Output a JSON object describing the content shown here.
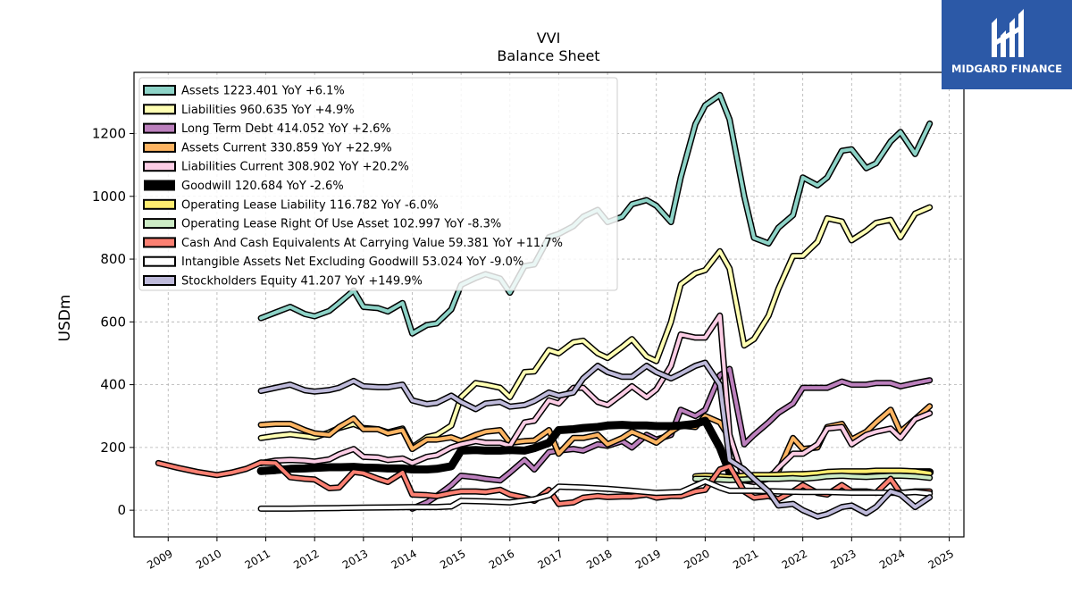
{
  "brand": {
    "name": "MIDGARD FINANCE",
    "logo_icon": "midgard-logo-icon",
    "color": "#2c59a7"
  },
  "chart_data": {
    "type": "line",
    "title": "VVI",
    "subtitle": "Balance  Sheet",
    "ylabel": "USDm",
    "xlabel": "",
    "xlim": [
      2008.3,
      2025.3
    ],
    "ylim": [
      -85,
      1395
    ],
    "x_ticks": [
      2009,
      2010,
      2011,
      2012,
      2013,
      2014,
      2015,
      2016,
      2017,
      2018,
      2019,
      2020,
      2021,
      2022,
      2023,
      2024,
      2025
    ],
    "y_ticks": [
      0,
      200,
      400,
      600,
      800,
      1000,
      1200
    ],
    "grid": true,
    "legend_position": "top-left",
    "series": [
      {
        "name": "Assets",
        "legend": "Assets  1223.401 YoY +6.1%",
        "color": "#8dd3c7",
        "width": 4,
        "x": [
          2010.9,
          2011.2,
          2011.5,
          2011.8,
          2012.0,
          2012.3,
          2012.5,
          2012.8,
          2013.0,
          2013.3,
          2013.5,
          2013.8,
          2014.0,
          2014.3,
          2014.5,
          2014.8,
          2015.0,
          2015.3,
          2015.5,
          2015.8,
          2016.0,
          2016.3,
          2016.5,
          2016.8,
          2017.0,
          2017.3,
          2017.5,
          2017.8,
          2018.0,
          2018.3,
          2018.5,
          2018.8,
          2019.0,
          2019.3,
          2019.5,
          2019.8,
          2020.0,
          2020.3,
          2020.5,
          2020.8,
          2021.0,
          2021.3,
          2021.5,
          2021.8,
          2022.0,
          2022.3,
          2022.5,
          2022.8,
          2023.0,
          2023.3,
          2023.5,
          2023.8,
          2024.0,
          2024.3,
          2024.6
        ],
        "y": [
          612,
          630,
          648,
          625,
          618,
          635,
          660,
          700,
          648,
          644,
          633,
          660,
          563,
          590,
          595,
          640,
          718,
          740,
          752,
          738,
          693,
          778,
          783,
          870,
          880,
          905,
          935,
          957,
          918,
          935,
          975,
          988,
          970,
          918,
          1060,
          1230,
          1290,
          1323,
          1245,
          1000,
          868,
          850,
          900,
          940,
          1060,
          1035,
          1060,
          1145,
          1150,
          1090,
          1105,
          1175,
          1205,
          1135,
          1232
        ]
      },
      {
        "name": "Liabilities",
        "legend": "Liabilities  960.635 YoY +4.9%",
        "color": "#ffffb3",
        "width": 4,
        "x": [
          2010.9,
          2011.2,
          2011.5,
          2011.8,
          2012.0,
          2012.3,
          2012.5,
          2012.8,
          2013.0,
          2013.3,
          2013.5,
          2013.8,
          2014.0,
          2014.3,
          2014.5,
          2014.8,
          2015.0,
          2015.3,
          2015.5,
          2015.8,
          2016.0,
          2016.3,
          2016.5,
          2016.8,
          2017.0,
          2017.3,
          2017.5,
          2017.8,
          2018.0,
          2018.3,
          2018.5,
          2018.8,
          2019.0,
          2019.3,
          2019.5,
          2019.8,
          2020.0,
          2020.3,
          2020.5,
          2020.8,
          2021.0,
          2021.3,
          2021.5,
          2021.8,
          2022.0,
          2022.3,
          2022.5,
          2022.8,
          2023.0,
          2023.3,
          2023.5,
          2023.8,
          2024.0,
          2024.3,
          2024.6
        ],
        "y": [
          230,
          237,
          242,
          236,
          232,
          248,
          262,
          275,
          262,
          258,
          248,
          260,
          200,
          233,
          240,
          270,
          360,
          405,
          400,
          390,
          360,
          440,
          442,
          510,
          500,
          535,
          540,
          500,
          485,
          520,
          545,
          490,
          475,
          600,
          720,
          755,
          765,
          825,
          770,
          525,
          545,
          620,
          705,
          810,
          810,
          855,
          930,
          920,
          860,
          890,
          915,
          925,
          870,
          945,
          965
        ]
      },
      {
        "name": "Long Term Debt",
        "legend": "Long Term Debt  414.052 YoY +2.6%",
        "color": "#bc80bd",
        "width": 4,
        "x": [
          2014.0,
          2014.3,
          2014.5,
          2014.8,
          2015.0,
          2015.3,
          2015.5,
          2015.8,
          2016.0,
          2016.3,
          2016.5,
          2016.8,
          2017.0,
          2017.3,
          2017.5,
          2017.8,
          2018.0,
          2018.3,
          2018.5,
          2018.8,
          2019.0,
          2019.3,
          2019.5,
          2019.8,
          2020.0,
          2020.3,
          2020.5,
          2020.8,
          2021.0,
          2021.3,
          2021.5,
          2021.8,
          2022.0,
          2022.3,
          2022.5,
          2022.8,
          2023.0,
          2023.3,
          2023.5,
          2023.8,
          2024.0,
          2024.3,
          2024.6
        ],
        "y": [
          5,
          25,
          45,
          80,
          110,
          105,
          100,
          95,
          120,
          160,
          130,
          185,
          190,
          195,
          190,
          210,
          205,
          220,
          200,
          240,
          225,
          240,
          320,
          300,
          320,
          430,
          450,
          210,
          240,
          280,
          310,
          340,
          390,
          390,
          390,
          410,
          400,
          400,
          405,
          405,
          395,
          405,
          414
        ]
      },
      {
        "name": "Assets Current",
        "legend": "Assets Current  330.859 YoY +22.9%",
        "color": "#fdb462",
        "width": 4,
        "x": [
          2010.9,
          2011.2,
          2011.5,
          2011.8,
          2012.0,
          2012.3,
          2012.5,
          2012.8,
          2013.0,
          2013.3,
          2013.5,
          2013.8,
          2014.0,
          2014.3,
          2014.5,
          2014.8,
          2015.0,
          2015.3,
          2015.5,
          2015.8,
          2016.0,
          2016.3,
          2016.5,
          2016.8,
          2017.0,
          2017.3,
          2017.5,
          2017.8,
          2018.0,
          2018.3,
          2018.5,
          2018.8,
          2019.0,
          2019.3,
          2019.5,
          2019.8,
          2020.0,
          2020.3,
          2020.5,
          2020.8,
          2021.0,
          2021.3,
          2021.5,
          2021.8,
          2022.0,
          2022.3,
          2022.5,
          2022.8,
          2023.0,
          2023.3,
          2023.5,
          2023.8,
          2024.0,
          2024.3,
          2024.6
        ],
        "y": [
          272,
          275,
          275,
          255,
          245,
          240,
          265,
          292,
          258,
          258,
          245,
          255,
          195,
          225,
          225,
          232,
          220,
          240,
          250,
          255,
          215,
          220,
          222,
          255,
          180,
          230,
          230,
          240,
          210,
          230,
          250,
          230,
          215,
          250,
          270,
          265,
          300,
          280,
          230,
          100,
          95,
          110,
          125,
          230,
          195,
          200,
          265,
          275,
          225,
          250,
          280,
          320,
          250,
          290,
          331
        ]
      },
      {
        "name": "Liabilities Current",
        "legend": "Liabilities Current  308.902 YoY +20.2%",
        "color": "#fccde5",
        "width": 4,
        "x": [
          2010.9,
          2011.2,
          2011.5,
          2011.8,
          2012.0,
          2012.3,
          2012.5,
          2012.8,
          2013.0,
          2013.3,
          2013.5,
          2013.8,
          2014.0,
          2014.3,
          2014.5,
          2014.8,
          2015.0,
          2015.3,
          2015.5,
          2015.8,
          2016.0,
          2016.3,
          2016.5,
          2016.8,
          2017.0,
          2017.3,
          2017.5,
          2017.8,
          2018.0,
          2018.3,
          2018.5,
          2018.8,
          2019.0,
          2019.3,
          2019.5,
          2019.8,
          2020.0,
          2020.3,
          2020.5,
          2020.8,
          2021.0,
          2021.3,
          2021.5,
          2021.8,
          2022.0,
          2022.3,
          2022.5,
          2022.8,
          2023.0,
          2023.3,
          2023.5,
          2023.8,
          2024.0,
          2024.3,
          2024.6
        ],
        "y": [
          150,
          158,
          160,
          158,
          155,
          162,
          178,
          195,
          170,
          168,
          160,
          165,
          150,
          170,
          175,
          200,
          210,
          220,
          215,
          215,
          205,
          280,
          285,
          350,
          340,
          390,
          390,
          345,
          335,
          370,
          395,
          360,
          385,
          460,
          560,
          550,
          550,
          620,
          240,
          95,
          90,
          100,
          135,
          180,
          180,
          210,
          260,
          265,
          210,
          240,
          250,
          260,
          230,
          290,
          309
        ]
      },
      {
        "name": "Goodwill",
        "legend": "Goodwill  120.684 YoY -2.6%",
        "color": "#000000",
        "width": 9,
        "x": [
          2010.9,
          2011.2,
          2011.5,
          2011.8,
          2012.0,
          2012.3,
          2012.5,
          2012.8,
          2013.0,
          2013.3,
          2013.5,
          2013.8,
          2014.0,
          2014.3,
          2014.5,
          2014.8,
          2015.0,
          2015.3,
          2015.5,
          2015.8,
          2016.0,
          2016.3,
          2016.5,
          2016.8,
          2017.0,
          2017.3,
          2017.5,
          2017.8,
          2018.0,
          2018.3,
          2018.5,
          2018.8,
          2019.0,
          2019.3,
          2019.5,
          2019.8,
          2020.0,
          2020.3,
          2020.5,
          2020.8,
          2021.0,
          2021.3,
          2021.5,
          2021.8,
          2022.0,
          2022.3,
          2022.5,
          2022.8,
          2023.0,
          2023.3,
          2023.5,
          2023.8,
          2024.0,
          2024.3,
          2024.6
        ],
        "y": [
          125,
          128,
          132,
          133,
          135,
          137,
          137,
          138,
          136,
          135,
          133,
          133,
          130,
          130,
          132,
          140,
          190,
          192,
          190,
          190,
          192,
          190,
          198,
          215,
          255,
          258,
          262,
          265,
          270,
          272,
          270,
          270,
          268,
          268,
          270,
          275,
          285,
          200,
          120,
          98,
          100,
          105,
          108,
          110,
          112,
          114,
          116,
          118,
          118,
          119,
          120,
          120,
          121,
          121,
          121
        ]
      },
      {
        "name": "Operating Lease Liability",
        "legend": "Operating Lease Liability  116.782 YoY -6.0%",
        "color": "#ffed6f",
        "width": 4,
        "x": [
          2019.8,
          2020.0,
          2020.3,
          2020.5,
          2020.8,
          2021.0,
          2021.3,
          2021.5,
          2021.8,
          2022.0,
          2022.3,
          2022.5,
          2022.8,
          2023.0,
          2023.3,
          2023.5,
          2023.8,
          2024.0,
          2024.3,
          2024.6
        ],
        "y": [
          108,
          110,
          108,
          105,
          110,
          112,
          112,
          113,
          115,
          115,
          118,
          122,
          124,
          124,
          124,
          126,
          126,
          126,
          124,
          117
        ]
      },
      {
        "name": "Operating Lease Right Of Use Asset",
        "legend": "Operating Lease Right Of Use Asset  102.997 YoY -8.3%",
        "color": "#ccebc5",
        "width": 4,
        "x": [
          2019.8,
          2020.0,
          2020.3,
          2020.5,
          2020.8,
          2021.0,
          2021.3,
          2021.5,
          2021.8,
          2022.0,
          2022.3,
          2022.5,
          2022.8,
          2023.0,
          2023.3,
          2023.5,
          2023.8,
          2024.0,
          2024.3,
          2024.6
        ],
        "y": [
          100,
          100,
          98,
          96,
          98,
          100,
          100,
          100,
          102,
          100,
          104,
          108,
          110,
          108,
          106,
          108,
          110,
          110,
          108,
          103
        ]
      },
      {
        "name": "Cash And Cash Equivalents At Carrying Value",
        "legend": "Cash And Cash Equivalents At Carrying Value  59.381 YoY +11.7%",
        "color": "#fb8072",
        "width": 4,
        "x": [
          2008.8,
          2009.2,
          2009.6,
          2010.0,
          2010.3,
          2010.6,
          2010.9,
          2011.2,
          2011.5,
          2011.8,
          2012.0,
          2012.3,
          2012.5,
          2012.8,
          2013.0,
          2013.3,
          2013.5,
          2013.8,
          2014.0,
          2014.3,
          2014.5,
          2014.8,
          2015.0,
          2015.3,
          2015.5,
          2015.8,
          2016.0,
          2016.3,
          2016.5,
          2016.8,
          2017.0,
          2017.3,
          2017.5,
          2017.8,
          2018.0,
          2018.3,
          2018.5,
          2018.8,
          2019.0,
          2019.3,
          2019.5,
          2019.8,
          2020.0,
          2020.3,
          2020.5,
          2020.8,
          2021.0,
          2021.3,
          2021.5,
          2021.8,
          2022.0,
          2022.3,
          2022.5,
          2022.8,
          2023.0,
          2023.3,
          2023.5,
          2023.8,
          2024.0,
          2024.3,
          2024.6
        ],
        "y": [
          150,
          135,
          122,
          112,
          120,
          132,
          152,
          150,
          105,
          100,
          98,
          70,
          72,
          122,
          118,
          100,
          90,
          120,
          50,
          48,
          45,
          55,
          60,
          60,
          58,
          65,
          50,
          40,
          30,
          65,
          20,
          25,
          40,
          45,
          42,
          44,
          44,
          50,
          40,
          45,
          45,
          60,
          65,
          130,
          140,
          60,
          40,
          45,
          35,
          60,
          80,
          55,
          50,
          80,
          60,
          60,
          55,
          100,
          55,
          60,
          60
        ]
      },
      {
        "name": "Intangible Assets Net Excluding Goodwill",
        "legend": "Intangible Assets Net Excluding Goodwill  53.024 YoY -9.0%",
        "color": "#ffffff",
        "width": 4,
        "x": [
          2010.9,
          2011.5,
          2012.0,
          2012.5,
          2013.0,
          2013.5,
          2014.0,
          2014.5,
          2014.8,
          2015.0,
          2015.5,
          2016.0,
          2016.5,
          2016.8,
          2017.0,
          2017.5,
          2018.0,
          2018.5,
          2019.0,
          2019.5,
          2020.0,
          2020.3,
          2020.5,
          2021.0,
          2021.5,
          2022.0,
          2022.5,
          2023.0,
          2023.5,
          2024.0,
          2024.3,
          2024.6
        ],
        "y": [
          5,
          5,
          6,
          7,
          8,
          9,
          10,
          10,
          12,
          30,
          28,
          25,
          35,
          48,
          75,
          72,
          68,
          62,
          55,
          58,
          92,
          72,
          62,
          62,
          60,
          58,
          58,
          56,
          56,
          55,
          58,
          53
        ]
      },
      {
        "name": "Stockholders Equity",
        "legend": "Stockholders Equity  41.207 YoY +149.9%",
        "color": "#bebada",
        "width": 4,
        "x": [
          2010.9,
          2011.2,
          2011.5,
          2011.8,
          2012.0,
          2012.3,
          2012.5,
          2012.8,
          2013.0,
          2013.3,
          2013.5,
          2013.8,
          2014.0,
          2014.3,
          2014.5,
          2014.8,
          2015.0,
          2015.3,
          2015.5,
          2015.8,
          2016.0,
          2016.3,
          2016.5,
          2016.8,
          2017.0,
          2017.3,
          2017.5,
          2017.8,
          2018.0,
          2018.3,
          2018.5,
          2018.8,
          2019.0,
          2019.3,
          2019.5,
          2019.8,
          2020.0,
          2020.3,
          2020.5,
          2020.8,
          2021.0,
          2021.3,
          2021.5,
          2021.8,
          2022.0,
          2022.3,
          2022.5,
          2022.8,
          2023.0,
          2023.3,
          2023.5,
          2023.8,
          2024.0,
          2024.3,
          2024.6
        ],
        "y": [
          380,
          390,
          400,
          382,
          378,
          383,
          390,
          412,
          395,
          392,
          392,
          400,
          350,
          338,
          342,
          365,
          345,
          322,
          340,
          345,
          330,
          335,
          348,
          375,
          365,
          375,
          420,
          460,
          440,
          425,
          425,
          460,
          440,
          420,
          435,
          460,
          470,
          400,
          160,
          130,
          100,
          60,
          15,
          20,
          0,
          -20,
          -12,
          10,
          15,
          -10,
          10,
          60,
          50,
          10,
          41
        ]
      }
    ]
  }
}
